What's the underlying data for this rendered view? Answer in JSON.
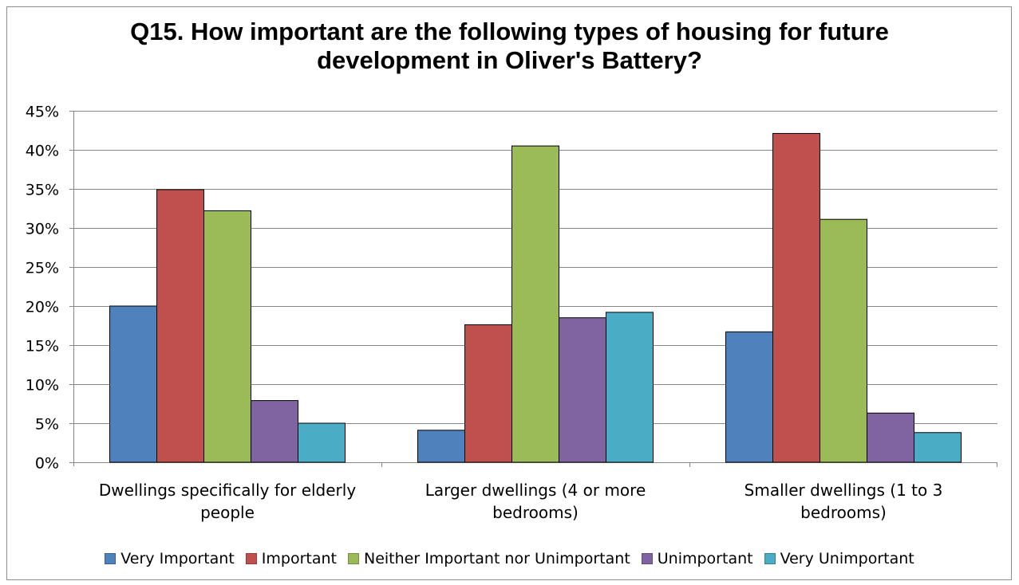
{
  "chart_data": {
    "type": "bar",
    "title_lines": [
      "Q15.  How important are the following types of housing for future",
      "development in Oliver's Battery?"
    ],
    "categories": [
      [
        "Dwellings specifically for elderly",
        "people"
      ],
      [
        "Larger dwellings (4 or more",
        "bedrooms)"
      ],
      [
        "Smaller dwellings (1 to 3",
        "bedrooms)"
      ]
    ],
    "series": [
      {
        "name": "Very Important",
        "color": "#4f81bd",
        "values": [
          0.2,
          0.041,
          0.167
        ]
      },
      {
        "name": "Important",
        "color": "#c0504d",
        "values": [
          0.349,
          0.176,
          0.421
        ]
      },
      {
        "name": "Neither Important nor Unimportant",
        "color": "#9bbb59",
        "values": [
          0.322,
          0.405,
          0.311
        ]
      },
      {
        "name": "Unimportant",
        "color": "#8064a2",
        "values": [
          0.079,
          0.185,
          0.063
        ]
      },
      {
        "name": "Very Unimportant",
        "color": "#4bacc6",
        "values": [
          0.05,
          0.192,
          0.038
        ]
      }
    ],
    "y_ticks": [
      "0%",
      "5%",
      "10%",
      "15%",
      "20%",
      "25%",
      "30%",
      "35%",
      "40%",
      "45%"
    ],
    "ylim": [
      0,
      0.45
    ],
    "grid": true,
    "legend_position": "bottom"
  }
}
